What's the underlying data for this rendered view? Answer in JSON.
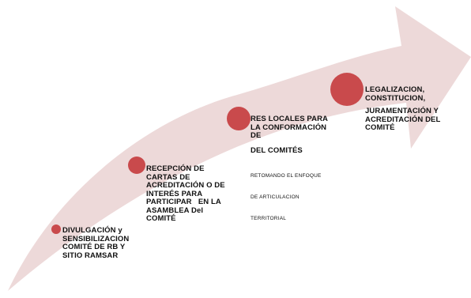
{
  "colors": {
    "arrow": "#edd9d9",
    "dot": "#c94a4c",
    "text": "#111111"
  },
  "steps": [
    {
      "lines": [
        "DIVULGACIÓN y",
        "SENSIBILIZACION",
        "COMITÉ DE RB Y",
        "SITIO RAMSAR"
      ]
    },
    {
      "lines": [
        "RECEPCIÓN DE",
        "CARTAS DE",
        "ACREDITACIÓN O DE",
        "INTERÉS PARA",
        "PARTICIPAR   EN LA",
        "ASAMBLEA Del",
        "COMITÉ"
      ]
    },
    {
      "lines": [
        "RES LOCALES PARA",
        "LA CONFORMACIÓN",
        "DE"
      ],
      "extra": "DEL COMITÉS",
      "note": [
        "RETOMANDO EL ENFOQUE",
        "DE ARTICULACION",
        "TERRITORIAL"
      ]
    },
    {
      "lines": [
        "LEGALIZACION,",
        "CONSTITUCION,",
        "JURAMENTACIÓN Y",
        "ACREDITACIÓN DEL",
        "COMITÉ"
      ]
    }
  ]
}
